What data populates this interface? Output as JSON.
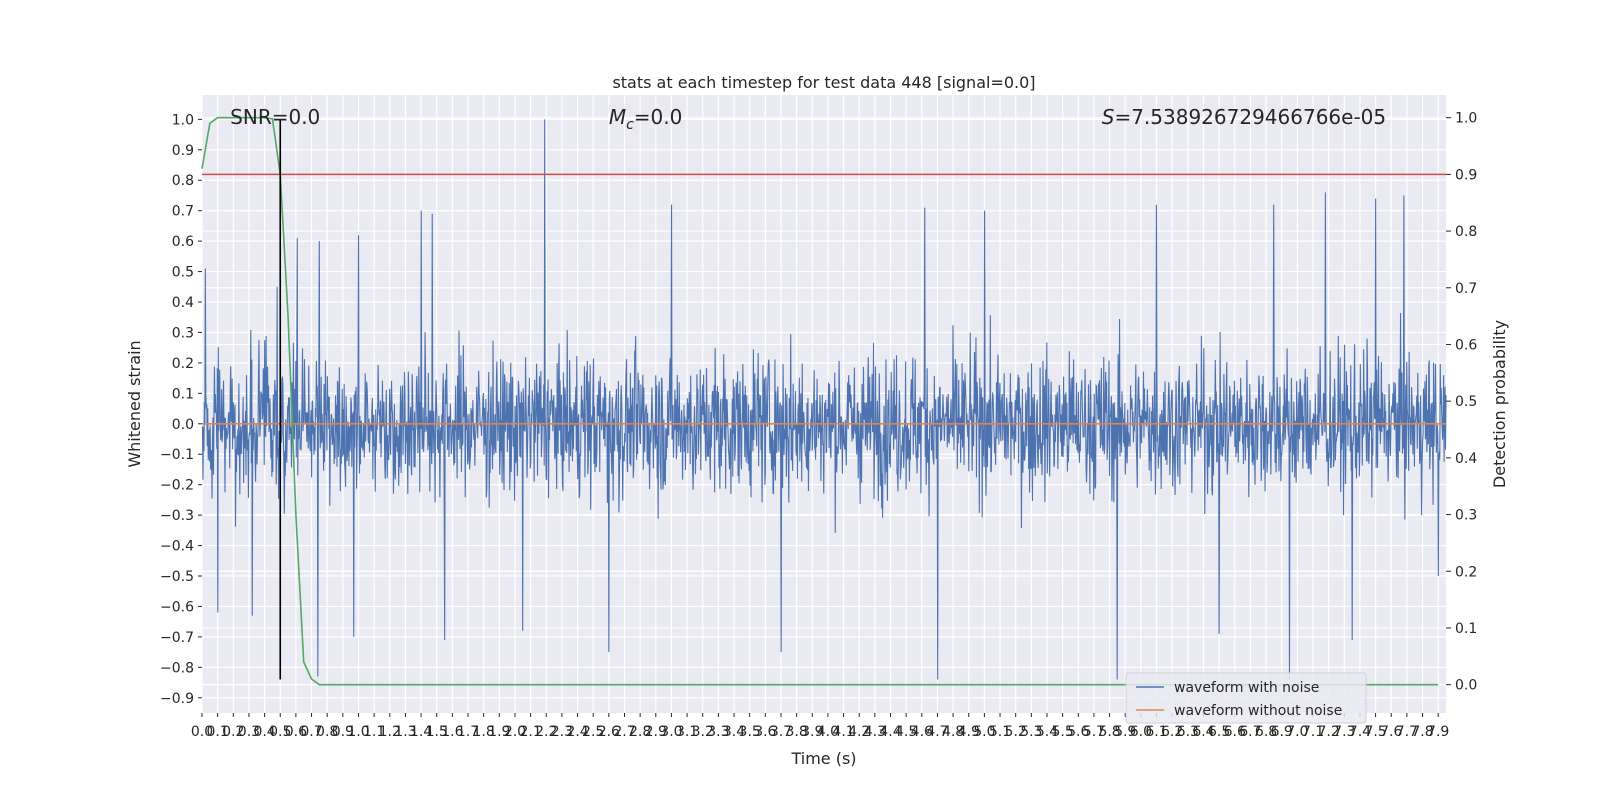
{
  "chart_data": {
    "type": "line",
    "title": "stats at each timestep for test data 448 [signal=0.0]",
    "xlabel": "Time (s)",
    "ylabel_left": "Whitened strain",
    "ylabel_right": "Detection probability",
    "xlim": [
      0.0,
      7.95
    ],
    "ylim_left": [
      -0.95,
      1.08
    ],
    "ylim_right": [
      -0.05,
      1.04
    ],
    "x_ticks": [
      0.0,
      0.1,
      0.2,
      0.3,
      0.4,
      0.5,
      0.6,
      0.7,
      0.8,
      0.9,
      1.0,
      1.1,
      1.2,
      1.3,
      1.4,
      1.5,
      1.6,
      1.7,
      1.8,
      1.9,
      2.0,
      2.1,
      2.2,
      2.3,
      2.4,
      2.5,
      2.6,
      2.7,
      2.8,
      2.9,
      3.0,
      3.1,
      3.2,
      3.3,
      3.4,
      3.5,
      3.6,
      3.7,
      3.8,
      3.9,
      4.0,
      4.1,
      4.2,
      4.3,
      4.4,
      4.5,
      4.6,
      4.7,
      4.8,
      4.9,
      5.0,
      5.1,
      5.2,
      5.3,
      5.4,
      5.5,
      5.6,
      5.7,
      5.8,
      5.9,
      6.0,
      6.1,
      6.2,
      6.3,
      6.4,
      6.5,
      6.6,
      6.7,
      6.8,
      6.9,
      7.0,
      7.1,
      7.2,
      7.3,
      7.4,
      7.5,
      7.6,
      7.7,
      7.8,
      7.9
    ],
    "x_tick_labels": [
      "0.0",
      "0.1",
      "0.2",
      "0.3",
      "0.4",
      "0.5",
      "0.6",
      "0.7",
      "0.8",
      "0.9",
      "1.0",
      "1.1",
      "1.2",
      "1.3",
      "1.4",
      "1.5",
      "1.6",
      "1.7",
      "1.8",
      "1.9",
      "2.0",
      "2.1",
      "2.2",
      "2.3",
      "2.4",
      "2.5",
      "2.6",
      "2.7",
      "2.8",
      "2.9",
      "3.0",
      "3.1",
      "3.2",
      "3.3",
      "3.4",
      "3.5",
      "3.6",
      "3.7",
      "3.8",
      "3.9",
      "4.0",
      "4.1",
      "4.2",
      "4.3",
      "4.4",
      "4.5",
      "4.6",
      "4.7",
      "4.8",
      "4.9",
      "5.0",
      "5.1",
      "5.2",
      "5.3",
      "5.4",
      "5.5",
      "5.6",
      "5.7",
      "5.8",
      "5.9",
      "6.0",
      "6.1",
      "6.2",
      "6.3",
      "6.4",
      "6.5",
      "6.6",
      "6.7",
      "6.8",
      "6.9",
      "7.0",
      "7.1",
      "7.2",
      "7.3",
      "7.4",
      "7.5",
      "7.6",
      "7.7",
      "7.8",
      "7.9"
    ],
    "y_ticks_left": [
      1.0,
      0.9,
      0.8,
      0.7,
      0.6,
      0.5,
      0.4,
      0.3,
      0.2,
      0.1,
      0.0,
      -0.1,
      -0.2,
      -0.3,
      -0.4,
      -0.5,
      -0.6,
      -0.7,
      -0.8,
      -0.9
    ],
    "y_tick_labels_left": [
      "1.0",
      "0.9",
      "0.8",
      "0.7",
      "0.6",
      "0.5",
      "0.4",
      "0.3",
      "0.2",
      "0.1",
      "0.0",
      "−0.1",
      "−0.2",
      "−0.3",
      "−0.4",
      "−0.5",
      "−0.6",
      "−0.7",
      "−0.8",
      "−0.9"
    ],
    "y_ticks_right": [
      1.0,
      0.9,
      0.8,
      0.7,
      0.6,
      0.5,
      0.4,
      0.3,
      0.2,
      0.1,
      0.0
    ],
    "y_tick_labels_right": [
      "1.0",
      "0.9",
      "0.8",
      "0.7",
      "0.6",
      "0.5",
      "0.4",
      "0.3",
      "0.2",
      "0.1",
      "0.0"
    ],
    "grid": true,
    "legend_placement": "lower-right",
    "series": [
      {
        "name": "waveform with noise",
        "axis": "left",
        "color": "#4c72b0",
        "rendering": "dense noise trace, t from 0.0 to 7.95 s, amplitude mostly within about ±0.45 with peaks near +0.75 and a spike to 1.0 at t≈2.19 s",
        "peaks": [
          {
            "x": 0.02,
            "y": 0.51
          },
          {
            "x": 0.48,
            "y": 0.45
          },
          {
            "x": 0.61,
            "y": 0.61
          },
          {
            "x": 0.75,
            "y": 0.6
          },
          {
            "x": 1.0,
            "y": 0.62
          },
          {
            "x": 1.4,
            "y": 0.7
          },
          {
            "x": 1.47,
            "y": 0.69
          },
          {
            "x": 2.19,
            "y": 1.0
          },
          {
            "x": 3.0,
            "y": 0.72
          },
          {
            "x": 4.62,
            "y": 0.71
          },
          {
            "x": 5.0,
            "y": 0.7
          },
          {
            "x": 6.1,
            "y": 0.72
          },
          {
            "x": 6.85,
            "y": 0.72
          },
          {
            "x": 7.18,
            "y": 0.76
          },
          {
            "x": 7.5,
            "y": 0.74
          },
          {
            "x": 7.68,
            "y": 0.75
          }
        ],
        "troughs": [
          {
            "x": 0.1,
            "y": -0.62
          },
          {
            "x": 0.32,
            "y": -0.63
          },
          {
            "x": 0.74,
            "y": -0.83
          },
          {
            "x": 0.97,
            "y": -0.7
          },
          {
            "x": 1.55,
            "y": -0.71
          },
          {
            "x": 2.05,
            "y": -0.68
          },
          {
            "x": 2.6,
            "y": -0.75
          },
          {
            "x": 3.7,
            "y": -0.75
          },
          {
            "x": 4.7,
            "y": -0.84
          },
          {
            "x": 5.85,
            "y": -0.84
          },
          {
            "x": 6.5,
            "y": -0.69
          },
          {
            "x": 6.95,
            "y": -0.84
          },
          {
            "x": 7.35,
            "y": -0.71
          },
          {
            "x": 7.9,
            "y": -0.5
          }
        ]
      },
      {
        "name": "waveform without noise",
        "axis": "left",
        "color": "#dd8452",
        "x": [
          0.0,
          7.95
        ],
        "y": [
          0.0,
          0.0
        ]
      },
      {
        "axis": "right",
        "color": "#55a868",
        "x": [
          0.0,
          0.05,
          0.1,
          0.15,
          0.2,
          0.25,
          0.3,
          0.35,
          0.4,
          0.45,
          0.5,
          0.55,
          0.6,
          0.65,
          0.7,
          0.75,
          0.8,
          7.9
        ],
        "y": [
          0.91,
          0.99,
          1.0,
          1.0,
          1.0,
          1.0,
          1.0,
          1.0,
          1.0,
          0.998,
          0.9,
          0.65,
          0.3,
          0.04,
          0.01,
          0.0,
          0.0,
          0.0
        ]
      },
      {
        "axis": "right",
        "color": "#c44e52",
        "x": [
          0.0,
          7.95
        ],
        "y": [
          0.9,
          0.9
        ]
      },
      {
        "axis": "left",
        "color": "#000000",
        "x": [
          0.5,
          0.5
        ],
        "y": [
          -0.84,
          1.0
        ]
      }
    ],
    "annotations": [
      {
        "text": "SNR=0.0",
        "x": 0.18
      },
      {
        "text_sym": "M",
        "text_sub": "c",
        "text_rest": "=0.0",
        "x": 2.6
      },
      {
        "text_sym": "S",
        "text_rest": "=7.538926729466766e-05",
        "x": 5.75
      }
    ]
  }
}
